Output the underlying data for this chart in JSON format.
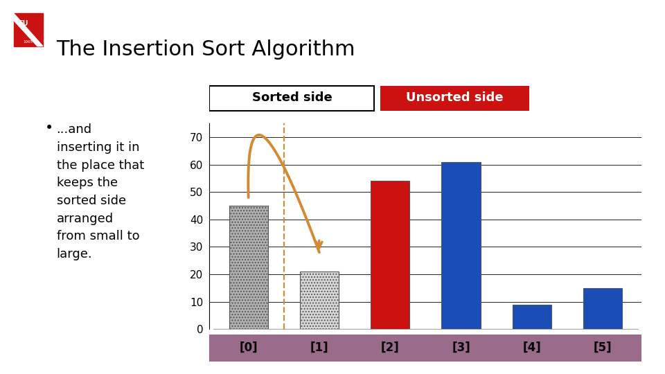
{
  "title": "The Insertion Sort Algorithm",
  "categories": [
    "[0]",
    "[1]",
    "[2]",
    "[3]",
    "[4]",
    "[5]"
  ],
  "values": [
    45,
    21,
    54,
    61,
    9,
    15
  ],
  "bar_colors": [
    "#b0b0b0",
    "#d8d8d8",
    "#cc1111",
    "#1a4db5",
    "#1a4db5",
    "#1a4db5"
  ],
  "bar_hatches": [
    "....",
    "....",
    "",
    "",
    "",
    ""
  ],
  "sorted_label": "Sorted side",
  "unsorted_label": "Unsorted side",
  "sorted_color": "#ffffff",
  "unsorted_color": "#cc1111",
  "sorted_text_color": "#000000",
  "unsorted_text_color": "#ffffff",
  "xlabel_bg_color": "#9b6b8b",
  "arrow_color": "#d48a30",
  "dashed_line_color": "#c8903a",
  "ylim": [
    0,
    75
  ],
  "yticks": [
    0,
    10,
    20,
    30,
    40,
    50,
    60,
    70
  ],
  "background_color": "#ffffff",
  "bullet_text": "...and\ninserting it in\nthe place that\nkeeps the\nsorted side\narranged\nfrom small to\nlarge.",
  "title_fontsize": 22,
  "axis_tick_fontsize": 11,
  "xlabel_fontsize": 12,
  "bullet_fontsize": 13,
  "legend_fontsize": 13
}
